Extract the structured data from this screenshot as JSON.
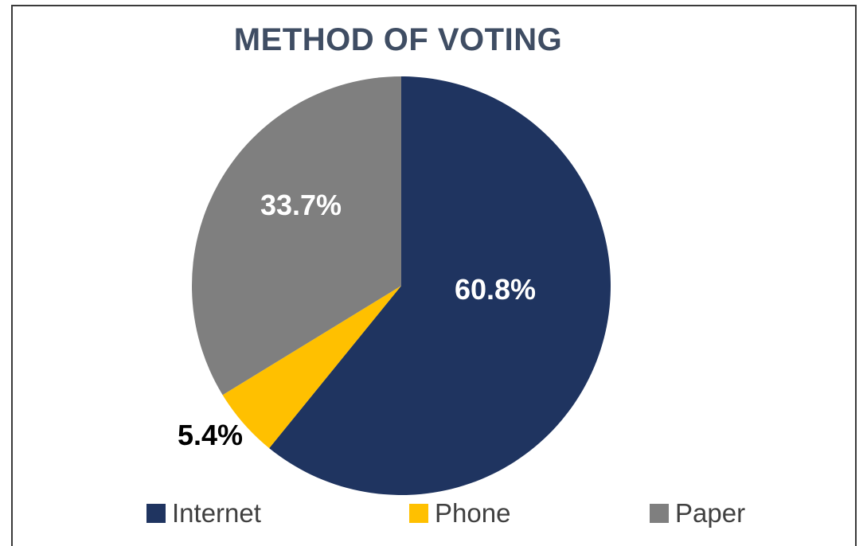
{
  "chart_data": {
    "type": "pie",
    "title": "METHOD OF VOTING",
    "slices": [
      {
        "label": "Internet",
        "value": 60.8,
        "display": "60.8%",
        "color": "#1f3460",
        "label_color": "#ffffff"
      },
      {
        "label": "Phone",
        "value": 5.4,
        "display": "5.4%",
        "color": "#ffc000",
        "label_color": "#000000"
      },
      {
        "label": "Paper",
        "value": 33.7,
        "display": "33.7%",
        "color": "#7f7f7f",
        "label_color": "#ffffff"
      }
    ],
    "legend_position": "bottom"
  }
}
